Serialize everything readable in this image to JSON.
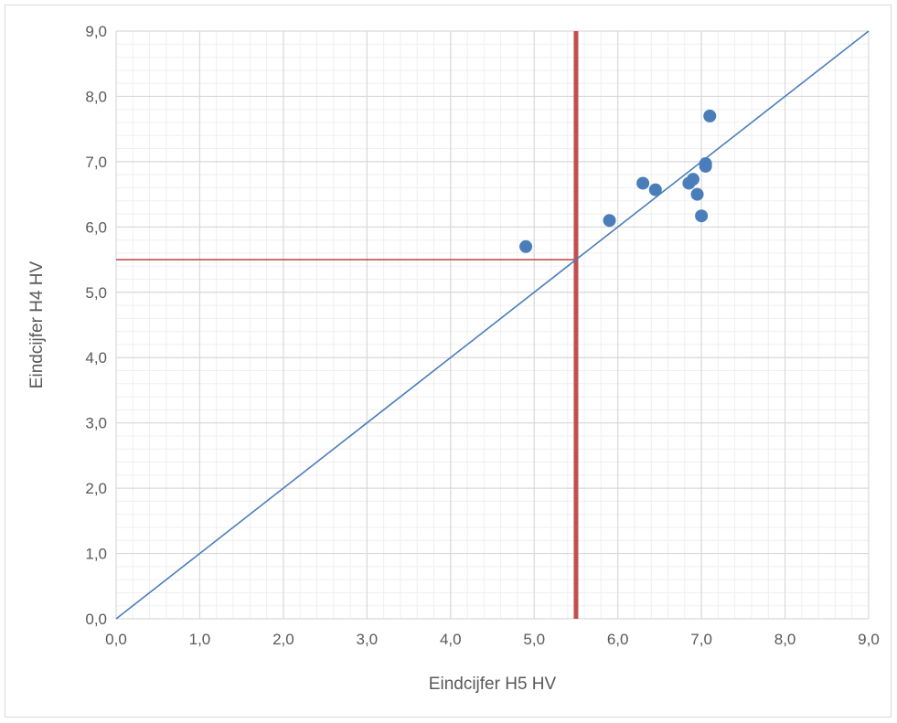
{
  "chart_data": {
    "type": "scatter",
    "title": "",
    "xlabel": "Eindcijfer H5 HV",
    "ylabel": "Eindcijfer H4 HV",
    "xlim": [
      0,
      9
    ],
    "ylim": [
      0,
      9
    ],
    "x_major_step": 1,
    "y_major_step": 1,
    "minor_divisions": 5,
    "tick_labels_x": [
      "0,0",
      "1,0",
      "2,0",
      "3,0",
      "4,0",
      "5,0",
      "6,0",
      "7,0",
      "8,0",
      "9,0"
    ],
    "tick_labels_y": [
      "0,0",
      "1,0",
      "2,0",
      "3,0",
      "4,0",
      "5,0",
      "6,0",
      "7,0",
      "8,0",
      "9,0"
    ],
    "grid": true,
    "legend": "none",
    "points": [
      {
        "x": 4.9,
        "y": 5.7
      },
      {
        "x": 5.9,
        "y": 6.1
      },
      {
        "x": 6.3,
        "y": 6.67
      },
      {
        "x": 6.45,
        "y": 6.57
      },
      {
        "x": 6.85,
        "y": 6.67
      },
      {
        "x": 6.9,
        "y": 6.73
      },
      {
        "x": 6.95,
        "y": 6.5
      },
      {
        "x": 7.0,
        "y": 6.17
      },
      {
        "x": 7.05,
        "y": 6.93
      },
      {
        "x": 7.05,
        "y": 6.97
      },
      {
        "x": 7.1,
        "y": 7.7
      }
    ],
    "reference_lines": {
      "diagonal": {
        "from": [
          0,
          0
        ],
        "to": [
          9,
          9
        ],
        "color": "#4a7ebb"
      },
      "vertical_threshold": {
        "x": 5.5,
        "from_y": 0,
        "to_y": 9,
        "color": "#c0504d"
      },
      "horizontal_threshold": {
        "y": 5.5,
        "from_x": 0,
        "to_x": 5.5,
        "color": "#c0504d"
      }
    },
    "colors": {
      "points": "#4a7ebb",
      "major_grid": "#d9d9d9",
      "minor_grid": "#efefef",
      "threshold": "#c0504d"
    }
  }
}
